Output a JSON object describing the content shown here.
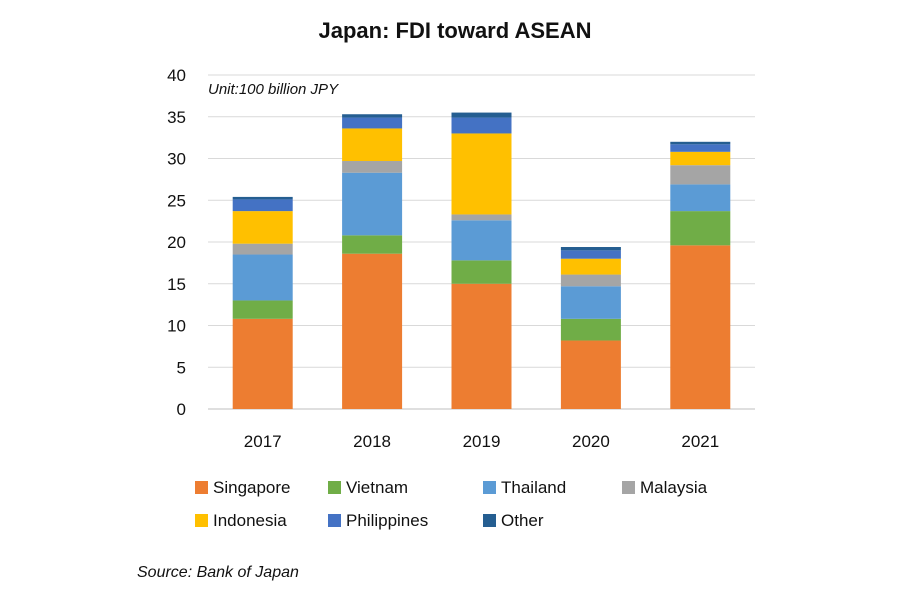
{
  "chart_data": {
    "type": "bar",
    "stacked": true,
    "title": "Japan: FDI toward ASEAN",
    "unit_label": "Unit:100 billion JPY",
    "source": "Source: Bank of Japan",
    "categories": [
      "2017",
      "2018",
      "2019",
      "2020",
      "2021"
    ],
    "ylim": [
      0,
      40
    ],
    "yticks": [
      0,
      5,
      10,
      15,
      20,
      25,
      30,
      35,
      40
    ],
    "grid": true,
    "legend_position": "bottom",
    "series": [
      {
        "name": "Singapore",
        "color": "#ED7D31",
        "values": [
          10.8,
          18.6,
          15.0,
          8.2,
          19.6
        ]
      },
      {
        "name": "Vietnam",
        "color": "#70AD47",
        "values": [
          2.2,
          2.2,
          2.8,
          2.6,
          4.1
        ]
      },
      {
        "name": "Thailand",
        "color": "#5B9BD5",
        "values": [
          5.5,
          7.5,
          4.8,
          3.9,
          3.2
        ]
      },
      {
        "name": "Malaysia",
        "color": "#A5A5A5",
        "values": [
          1.3,
          1.4,
          0.7,
          1.4,
          2.3
        ]
      },
      {
        "name": "Indonesia",
        "color": "#FFC000",
        "values": [
          3.9,
          3.9,
          9.7,
          1.9,
          1.6
        ]
      },
      {
        "name": "Philippines",
        "color": "#4472C4",
        "values": [
          1.4,
          1.3,
          1.9,
          1.0,
          0.9
        ]
      },
      {
        "name": "Other",
        "color": "#255E91",
        "values": [
          0.3,
          0.4,
          0.6,
          0.4,
          0.3
        ]
      }
    ]
  }
}
